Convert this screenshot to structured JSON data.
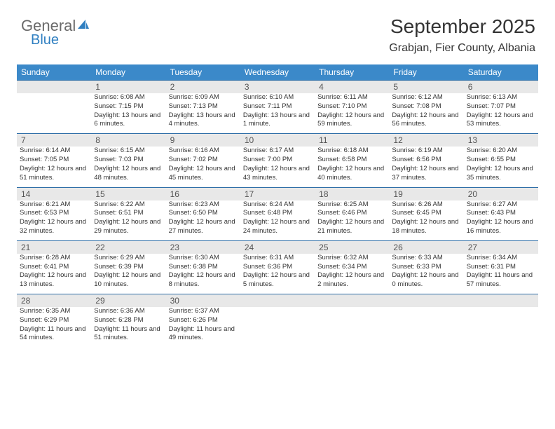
{
  "logo": {
    "text1": "General",
    "text2": "Blue"
  },
  "header": {
    "month": "September 2025",
    "location": "Grabjan, Fier County, Albania"
  },
  "colors": {
    "header_bg": "#3b89c9",
    "header_text": "#ffffff",
    "daynum_bg": "#e8e8e8",
    "daynum_border": "#2f6fa8",
    "body_text": "#333333",
    "logo_gray": "#6a6a6a",
    "logo_blue": "#2f7fc1"
  },
  "day_names": [
    "Sunday",
    "Monday",
    "Tuesday",
    "Wednesday",
    "Thursday",
    "Friday",
    "Saturday"
  ],
  "weeks": [
    {
      "nums": [
        "",
        "1",
        "2",
        "3",
        "4",
        "5",
        "6"
      ],
      "cells": [
        {
          "sunrise": "",
          "sunset": "",
          "daylight": ""
        },
        {
          "sunrise": "Sunrise: 6:08 AM",
          "sunset": "Sunset: 7:15 PM",
          "daylight": "Daylight: 13 hours and 6 minutes."
        },
        {
          "sunrise": "Sunrise: 6:09 AM",
          "sunset": "Sunset: 7:13 PM",
          "daylight": "Daylight: 13 hours and 4 minutes."
        },
        {
          "sunrise": "Sunrise: 6:10 AM",
          "sunset": "Sunset: 7:11 PM",
          "daylight": "Daylight: 13 hours and 1 minute."
        },
        {
          "sunrise": "Sunrise: 6:11 AM",
          "sunset": "Sunset: 7:10 PM",
          "daylight": "Daylight: 12 hours and 59 minutes."
        },
        {
          "sunrise": "Sunrise: 6:12 AM",
          "sunset": "Sunset: 7:08 PM",
          "daylight": "Daylight: 12 hours and 56 minutes."
        },
        {
          "sunrise": "Sunrise: 6:13 AM",
          "sunset": "Sunset: 7:07 PM",
          "daylight": "Daylight: 12 hours and 53 minutes."
        }
      ]
    },
    {
      "nums": [
        "7",
        "8",
        "9",
        "10",
        "11",
        "12",
        "13"
      ],
      "cells": [
        {
          "sunrise": "Sunrise: 6:14 AM",
          "sunset": "Sunset: 7:05 PM",
          "daylight": "Daylight: 12 hours and 51 minutes."
        },
        {
          "sunrise": "Sunrise: 6:15 AM",
          "sunset": "Sunset: 7:03 PM",
          "daylight": "Daylight: 12 hours and 48 minutes."
        },
        {
          "sunrise": "Sunrise: 6:16 AM",
          "sunset": "Sunset: 7:02 PM",
          "daylight": "Daylight: 12 hours and 45 minutes."
        },
        {
          "sunrise": "Sunrise: 6:17 AM",
          "sunset": "Sunset: 7:00 PM",
          "daylight": "Daylight: 12 hours and 43 minutes."
        },
        {
          "sunrise": "Sunrise: 6:18 AM",
          "sunset": "Sunset: 6:58 PM",
          "daylight": "Daylight: 12 hours and 40 minutes."
        },
        {
          "sunrise": "Sunrise: 6:19 AM",
          "sunset": "Sunset: 6:56 PM",
          "daylight": "Daylight: 12 hours and 37 minutes."
        },
        {
          "sunrise": "Sunrise: 6:20 AM",
          "sunset": "Sunset: 6:55 PM",
          "daylight": "Daylight: 12 hours and 35 minutes."
        }
      ]
    },
    {
      "nums": [
        "14",
        "15",
        "16",
        "17",
        "18",
        "19",
        "20"
      ],
      "cells": [
        {
          "sunrise": "Sunrise: 6:21 AM",
          "sunset": "Sunset: 6:53 PM",
          "daylight": "Daylight: 12 hours and 32 minutes."
        },
        {
          "sunrise": "Sunrise: 6:22 AM",
          "sunset": "Sunset: 6:51 PM",
          "daylight": "Daylight: 12 hours and 29 minutes."
        },
        {
          "sunrise": "Sunrise: 6:23 AM",
          "sunset": "Sunset: 6:50 PM",
          "daylight": "Daylight: 12 hours and 27 minutes."
        },
        {
          "sunrise": "Sunrise: 6:24 AM",
          "sunset": "Sunset: 6:48 PM",
          "daylight": "Daylight: 12 hours and 24 minutes."
        },
        {
          "sunrise": "Sunrise: 6:25 AM",
          "sunset": "Sunset: 6:46 PM",
          "daylight": "Daylight: 12 hours and 21 minutes."
        },
        {
          "sunrise": "Sunrise: 6:26 AM",
          "sunset": "Sunset: 6:45 PM",
          "daylight": "Daylight: 12 hours and 18 minutes."
        },
        {
          "sunrise": "Sunrise: 6:27 AM",
          "sunset": "Sunset: 6:43 PM",
          "daylight": "Daylight: 12 hours and 16 minutes."
        }
      ]
    },
    {
      "nums": [
        "21",
        "22",
        "23",
        "24",
        "25",
        "26",
        "27"
      ],
      "cells": [
        {
          "sunrise": "Sunrise: 6:28 AM",
          "sunset": "Sunset: 6:41 PM",
          "daylight": "Daylight: 12 hours and 13 minutes."
        },
        {
          "sunrise": "Sunrise: 6:29 AM",
          "sunset": "Sunset: 6:39 PM",
          "daylight": "Daylight: 12 hours and 10 minutes."
        },
        {
          "sunrise": "Sunrise: 6:30 AM",
          "sunset": "Sunset: 6:38 PM",
          "daylight": "Daylight: 12 hours and 8 minutes."
        },
        {
          "sunrise": "Sunrise: 6:31 AM",
          "sunset": "Sunset: 6:36 PM",
          "daylight": "Daylight: 12 hours and 5 minutes."
        },
        {
          "sunrise": "Sunrise: 6:32 AM",
          "sunset": "Sunset: 6:34 PM",
          "daylight": "Daylight: 12 hours and 2 minutes."
        },
        {
          "sunrise": "Sunrise: 6:33 AM",
          "sunset": "Sunset: 6:33 PM",
          "daylight": "Daylight: 12 hours and 0 minutes."
        },
        {
          "sunrise": "Sunrise: 6:34 AM",
          "sunset": "Sunset: 6:31 PM",
          "daylight": "Daylight: 11 hours and 57 minutes."
        }
      ]
    },
    {
      "nums": [
        "28",
        "29",
        "30",
        "",
        "",
        "",
        ""
      ],
      "cells": [
        {
          "sunrise": "Sunrise: 6:35 AM",
          "sunset": "Sunset: 6:29 PM",
          "daylight": "Daylight: 11 hours and 54 minutes."
        },
        {
          "sunrise": "Sunrise: 6:36 AM",
          "sunset": "Sunset: 6:28 PM",
          "daylight": "Daylight: 11 hours and 51 minutes."
        },
        {
          "sunrise": "Sunrise: 6:37 AM",
          "sunset": "Sunset: 6:26 PM",
          "daylight": "Daylight: 11 hours and 49 minutes."
        },
        {
          "sunrise": "",
          "sunset": "",
          "daylight": ""
        },
        {
          "sunrise": "",
          "sunset": "",
          "daylight": ""
        },
        {
          "sunrise": "",
          "sunset": "",
          "daylight": ""
        },
        {
          "sunrise": "",
          "sunset": "",
          "daylight": ""
        }
      ]
    }
  ]
}
